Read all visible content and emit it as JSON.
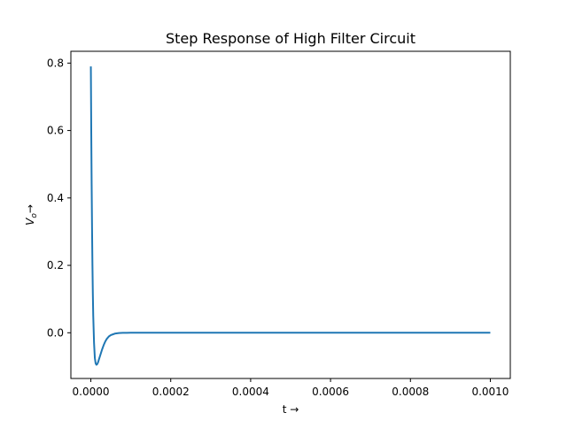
{
  "chart_data": {
    "type": "line",
    "title": "Step Response of High Filter Circuit",
    "xlabel": "t →",
    "ylabel_main": "V",
    "ylabel_sub": "o",
    "ylabel_arrow": "→",
    "xlim": [
      -5e-05,
      0.00105
    ],
    "ylim": [
      -0.1356,
      0.835
    ],
    "xticks": [
      {
        "value": 0.0,
        "label": "0.0000"
      },
      {
        "value": 0.0002,
        "label": "0.0002"
      },
      {
        "value": 0.0004,
        "label": "0.0004"
      },
      {
        "value": 0.0006,
        "label": "0.0006"
      },
      {
        "value": 0.0008,
        "label": "0.0008"
      },
      {
        "value": 0.001,
        "label": "0.0010"
      }
    ],
    "yticks": [
      {
        "value": 0.0,
        "label": "0.0"
      },
      {
        "value": 0.2,
        "label": "0.2"
      },
      {
        "value": 0.4,
        "label": "0.4"
      },
      {
        "value": 0.6,
        "label": "0.6"
      },
      {
        "value": 0.8,
        "label": "0.8"
      }
    ],
    "grid": false,
    "legend": "none",
    "series": [
      {
        "color": "#1f77b4",
        "x": [
          0.0,
          1e-06,
          2e-06,
          3e-06,
          4e-06,
          5e-06,
          6e-06,
          8e-06,
          1e-05,
          1.2e-05,
          1.4e-05,
          1.6e-05,
          1.8e-05,
          2e-05,
          2.4e-05,
          2.8e-05,
          3.2e-05,
          3.6e-05,
          4e-05,
          4.5e-05,
          5e-05,
          6e-05,
          7e-05,
          8e-05,
          9e-05,
          0.0001,
          0.00012,
          0.00015,
          0.0002,
          0.0003,
          0.0004,
          0.0005,
          0.0006,
          0.0007,
          0.0008,
          0.0009,
          0.001
        ],
        "y": [
          0.79,
          0.6,
          0.44,
          0.31,
          0.2,
          0.115,
          0.05,
          -0.03,
          -0.075,
          -0.091,
          -0.095,
          -0.093,
          -0.088,
          -0.08,
          -0.065,
          -0.05,
          -0.037,
          -0.026,
          -0.018,
          -0.011,
          -0.007,
          -0.0025,
          -0.0009,
          -0.0003,
          -0.0001,
          0.0,
          0.0,
          0.0,
          0.0,
          0.0,
          0.0,
          0.0,
          0.0,
          0.0,
          0.0,
          0.0,
          0.0
        ]
      }
    ]
  }
}
